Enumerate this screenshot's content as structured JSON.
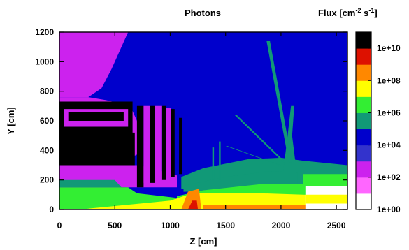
{
  "chart_data": {
    "type": "heatmap",
    "title": "Photons",
    "xlabel": "Z [cm]",
    "ylabel": "Y [cm]",
    "xlim": [
      0,
      2600
    ],
    "ylim": [
      0,
      1200
    ],
    "xticks": [
      0,
      500,
      1000,
      1500,
      2000,
      2500
    ],
    "yticks": [
      0,
      200,
      400,
      600,
      800,
      1000,
      1200
    ],
    "colorbar": {
      "title": "Flux [cm",
      "title_exp": "-2",
      "title_mid": " s",
      "title_exp2": "-1",
      "title_end": "]",
      "scale": "log",
      "range": [
        1,
        100000000000.0
      ],
      "bands": [
        {
          "from": 1.0,
          "to": 10.0,
          "color": "#ffffff"
        },
        {
          "from": 10.0,
          "to": 100.0,
          "color": "#ff66ff"
        },
        {
          "from": 100.0,
          "to": 1000.0,
          "color": "#cc22ee"
        },
        {
          "from": 1000.0,
          "to": 10000.0,
          "color": "#3333cc"
        },
        {
          "from": 10000.0,
          "to": 100000.0,
          "color": "#0000cc"
        },
        {
          "from": 100000.0,
          "to": 1000000.0,
          "color": "#119977"
        },
        {
          "from": 1000000.0,
          "to": 10000000.0,
          "color": "#33ee33"
        },
        {
          "from": 10000000.0,
          "to": 100000000.0,
          "color": "#ffff00"
        },
        {
          "from": 100000000.0,
          "to": 1000000000.0,
          "color": "#ff8800"
        },
        {
          "from": 1000000000.0,
          "to": 10000000000.0,
          "color": "#dd1100"
        },
        {
          "from": 10000000000.0,
          "to": 100000000000.0,
          "color": "#000000"
        }
      ],
      "tick_labels": [
        {
          "value": 1.0,
          "label": "1e+00"
        },
        {
          "value": 100.0,
          "label": "1e+02"
        },
        {
          "value": 10000.0,
          "label": "1e+04"
        },
        {
          "value": 1000000.0,
          "label": "1e+06"
        },
        {
          "value": 100000000.0,
          "label": "1e+08"
        },
        {
          "value": 10000000000.0,
          "label": "1e+10"
        }
      ]
    },
    "regions": [
      {
        "name": "background",
        "flux": 10000.0,
        "polygon": [
          [
            0,
            0
          ],
          [
            2600,
            0
          ],
          [
            2600,
            1200
          ],
          [
            0,
            1200
          ]
        ]
      },
      {
        "name": "upper-left-halo",
        "flux": 100.0,
        "polygon": [
          [
            0,
            1200
          ],
          [
            620,
            1200
          ],
          [
            560,
            1100
          ],
          [
            470,
            950
          ],
          [
            380,
            820
          ],
          [
            260,
            760
          ],
          [
            0,
            760
          ]
        ]
      },
      {
        "name": "left-shield-halo",
        "flux": 100.0,
        "polygon": [
          [
            0,
            760
          ],
          [
            260,
            760
          ],
          [
            420,
            740
          ],
          [
            640,
            700
          ],
          [
            700,
            600
          ],
          [
            720,
            380
          ],
          [
            620,
            340
          ],
          [
            0,
            300
          ]
        ]
      },
      {
        "name": "left-shield-block",
        "flux": 10000000000.0,
        "polygon": [
          [
            0,
            730
          ],
          [
            660,
            730
          ],
          [
            660,
            260
          ],
          [
            0,
            260
          ]
        ]
      },
      {
        "name": "left-shield-inner",
        "flux": 100.0,
        "polygon": [
          [
            40,
            680
          ],
          [
            620,
            680
          ],
          [
            620,
            560
          ],
          [
            40,
            560
          ]
        ]
      },
      {
        "name": "left-shield-slots",
        "flux": 10000000000.0,
        "polygon": [
          [
            80,
            660
          ],
          [
            580,
            660
          ],
          [
            580,
            600
          ],
          [
            80,
            600
          ]
        ]
      },
      {
        "name": "left-mid-block",
        "flux": 10000000000.0,
        "polygon": [
          [
            0,
            520
          ],
          [
            680,
            520
          ],
          [
            680,
            300
          ],
          [
            0,
            300
          ]
        ]
      },
      {
        "name": "left-lower-halo",
        "flux": 100.0,
        "polygon": [
          [
            0,
            300
          ],
          [
            720,
            300
          ],
          [
            1060,
            230
          ],
          [
            1060,
            150
          ],
          [
            0,
            150
          ]
        ]
      },
      {
        "name": "left-ground",
        "flux": 1000000.0,
        "polygon": [
          [
            0,
            150
          ],
          [
            620,
            150
          ],
          [
            700,
            110
          ],
          [
            1050,
            80
          ],
          [
            1050,
            0
          ],
          [
            0,
            0
          ]
        ]
      },
      {
        "name": "left-mid-green",
        "flux": 100000.0,
        "polygon": [
          [
            0,
            200
          ],
          [
            500,
            200
          ],
          [
            560,
            150
          ],
          [
            0,
            150
          ]
        ]
      },
      {
        "name": "vert-slab-1",
        "flux": 10000000000.0,
        "polygon": [
          [
            700,
            700
          ],
          [
            760,
            700
          ],
          [
            760,
            150
          ],
          [
            700,
            150
          ]
        ]
      },
      {
        "name": "vert-slab-2",
        "flux": 10000000000.0,
        "polygon": [
          [
            820,
            700
          ],
          [
            860,
            700
          ],
          [
            860,
            180
          ],
          [
            820,
            180
          ]
        ]
      },
      {
        "name": "vert-slab-3",
        "flux": 10000000000.0,
        "polygon": [
          [
            920,
            700
          ],
          [
            960,
            700
          ],
          [
            960,
            200
          ],
          [
            920,
            200
          ]
        ]
      },
      {
        "name": "vert-slab-4",
        "flux": 10000000000.0,
        "polygon": [
          [
            1010,
            680
          ],
          [
            1040,
            680
          ],
          [
            1040,
            220
          ],
          [
            1010,
            220
          ]
        ]
      },
      {
        "name": "vert-slab-5",
        "flux": 10000000000.0,
        "polygon": [
          [
            1080,
            620
          ],
          [
            1110,
            620
          ],
          [
            1110,
            240
          ],
          [
            1080,
            240
          ]
        ]
      },
      {
        "name": "slab-gap-1",
        "flux": 100.0,
        "polygon": [
          [
            760,
            700
          ],
          [
            820,
            700
          ],
          [
            820,
            180
          ],
          [
            760,
            180
          ]
        ]
      },
      {
        "name": "slab-gap-2",
        "flux": 100.0,
        "polygon": [
          [
            860,
            700
          ],
          [
            920,
            700
          ],
          [
            920,
            200
          ],
          [
            860,
            200
          ]
        ]
      },
      {
        "name": "slab-gap-3",
        "flux": 100.0,
        "polygon": [
          [
            960,
            690
          ],
          [
            1010,
            690
          ],
          [
            1010,
            220
          ],
          [
            960,
            220
          ]
        ]
      },
      {
        "name": "mid-teal",
        "flux": 100000.0,
        "polygon": [
          [
            1100,
            220
          ],
          [
            1300,
            280
          ],
          [
            1700,
            340
          ],
          [
            2000,
            350
          ],
          [
            2200,
            330
          ],
          [
            2600,
            300
          ],
          [
            2600,
            120
          ],
          [
            2200,
            120
          ],
          [
            1600,
            130
          ],
          [
            1100,
            140
          ]
        ]
      },
      {
        "name": "mid-cyan",
        "flux": 100000.0,
        "polygon": [
          [
            1120,
            160
          ],
          [
            1500,
            220
          ],
          [
            1900,
            260
          ],
          [
            2150,
            250
          ],
          [
            2150,
            140
          ],
          [
            1120,
            120
          ]
        ]
      },
      {
        "name": "right-green-band",
        "flux": 1000000.0,
        "polygon": [
          [
            1060,
            90
          ],
          [
            1300,
            130
          ],
          [
            1800,
            170
          ],
          [
            2600,
            170
          ],
          [
            2600,
            60
          ],
          [
            1060,
            40
          ]
        ]
      },
      {
        "name": "yellow-floor",
        "flux": 10000000.0,
        "polygon": [
          [
            180,
            0
          ],
          [
            1000,
            60
          ],
          [
            1200,
            110
          ],
          [
            1800,
            110
          ],
          [
            2600,
            90
          ],
          [
            2600,
            0
          ]
        ]
      },
      {
        "name": "orange-hotspot",
        "flux": 100000000.0,
        "polygon": [
          [
            1100,
            0
          ],
          [
            1160,
            120
          ],
          [
            1260,
            140
          ],
          [
            1280,
            0
          ]
        ]
      },
      {
        "name": "red-core",
        "flux": 1000000000.0,
        "polygon": [
          [
            1160,
            0
          ],
          [
            1200,
            60
          ],
          [
            1240,
            60
          ],
          [
            1250,
            0
          ]
        ]
      },
      {
        "name": "orange-floor-strip",
        "flux": 100000000.0,
        "polygon": [
          [
            1300,
            0
          ],
          [
            1300,
            30
          ],
          [
            2300,
            30
          ],
          [
            2300,
            0
          ]
        ]
      },
      {
        "name": "right-white",
        "flux": 1.0,
        "polygon": [
          [
            2220,
            0
          ],
          [
            2220,
            160
          ],
          [
            2600,
            160
          ],
          [
            2600,
            0
          ]
        ]
      },
      {
        "name": "right-green-top",
        "flux": 1000000.0,
        "polygon": [
          [
            2200,
            160
          ],
          [
            2600,
            160
          ],
          [
            2600,
            240
          ],
          [
            2200,
            240
          ]
        ]
      },
      {
        "name": "right-yellow",
        "flux": 10000000.0,
        "polygon": [
          [
            2220,
            40
          ],
          [
            2600,
            40
          ],
          [
            2600,
            100
          ],
          [
            2220,
            100
          ]
        ]
      },
      {
        "name": "plume",
        "flux": 100000.0,
        "polygon": [
          [
            2020,
            260
          ],
          [
            2060,
            500
          ],
          [
            2090,
            700
          ],
          [
            2120,
            700
          ],
          [
            2100,
            500
          ],
          [
            2140,
            260
          ]
        ]
      },
      {
        "name": "jet-1",
        "flux": 100000.0,
        "polygon": [
          [
            1870,
            1140
          ],
          [
            1900,
            1140
          ],
          [
            2100,
            320
          ],
          [
            2070,
            320
          ]
        ]
      },
      {
        "name": "jet-2",
        "flux": 100000.0,
        "polygon": [
          [
            1580,
            640
          ],
          [
            1600,
            640
          ],
          [
            2040,
            320
          ],
          [
            2020,
            320
          ]
        ]
      },
      {
        "name": "jet-3",
        "flux": 100000.0,
        "polygon": [
          [
            1500,
            430
          ],
          [
            1515,
            430
          ],
          [
            2000,
            300
          ],
          [
            1985,
            300
          ]
        ]
      },
      {
        "name": "stalk-1",
        "flux": 100000.0,
        "polygon": [
          [
            1380,
            420
          ],
          [
            1395,
            420
          ],
          [
            1395,
            200
          ],
          [
            1380,
            200
          ]
        ]
      },
      {
        "name": "stalk-2",
        "flux": 100000.0,
        "polygon": [
          [
            1440,
            460
          ],
          [
            1455,
            460
          ],
          [
            1455,
            200
          ],
          [
            1440,
            200
          ]
        ]
      }
    ]
  }
}
